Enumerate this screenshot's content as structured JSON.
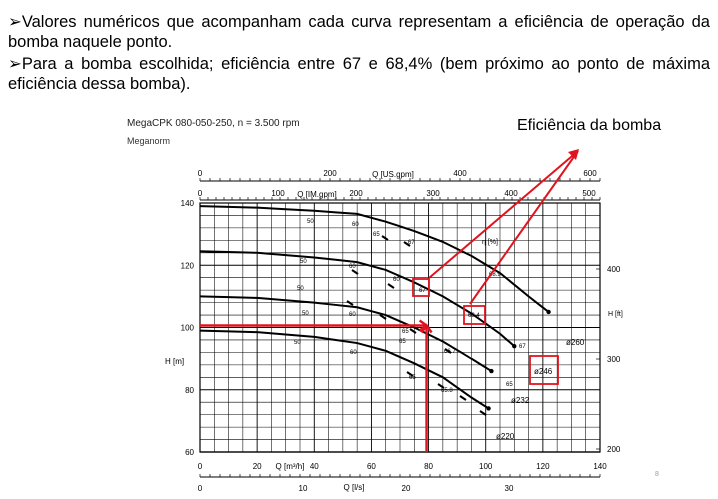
{
  "bullets": [
    "➢Valores numéricos que acompanham cada curva representam a eficiência de operação da bomba naquele ponto.",
    "➢Para a bomba escolhida; eficiência entre 67 e 68,4% (bem próximo ao ponto de máxima eficiência dessa bomba)."
  ],
  "figure": {
    "title": "MegaCPK 080-050-250, n = 3.500 rpm",
    "subtitle": "Meganorm",
    "callout": "Eficiência da bomba",
    "page_number": "8",
    "accent_color": "#e0141e"
  },
  "chart_data": {
    "type": "line",
    "xlabel": "Q [m³/h]",
    "ylabel": "H [m]",
    "xlim": [
      0,
      140
    ],
    "ylim": [
      60,
      140
    ],
    "x_ticks": [
      "0",
      "20",
      "40",
      "60",
      "80",
      "100",
      "120",
      "140"
    ],
    "y_ticks": [
      "60",
      "80",
      "100",
      "120",
      "140"
    ],
    "secondary_axes": {
      "top_us_gpm": {
        "label": "Q [US.gpm]",
        "ticks": [
          "0",
          "200",
          "400",
          "600"
        ]
      },
      "top_im_gpm": {
        "label": "Q [IM.gpm]",
        "ticks": [
          "0",
          "100",
          "200",
          "300",
          "400",
          "500"
        ]
      },
      "bottom_ls": {
        "label": "Q [l/s]",
        "ticks": [
          "0",
          "10",
          "20",
          "30"
        ]
      },
      "right_ft": {
        "label": "H [ft]",
        "ticks": [
          "200",
          "300",
          "400"
        ]
      }
    },
    "efficiency_unit": "η [%]",
    "series": [
      {
        "name": "ø260",
        "x": [
          0,
          20,
          40,
          55,
          65,
          75,
          85,
          95,
          105,
          115,
          122
        ],
        "y": [
          139,
          138.5,
          137.5,
          136.5,
          134,
          131,
          127.5,
          123,
          117.5,
          110,
          105
        ]
      },
      {
        "name": "ø246",
        "x": [
          0,
          20,
          40,
          55,
          65,
          75,
          85,
          95,
          105,
          110
        ],
        "y": [
          124.5,
          124,
          122.5,
          121,
          118.5,
          114.5,
          110,
          104.5,
          98,
          94
        ]
      },
      {
        "name": "ø232",
        "x": [
          0,
          20,
          40,
          55,
          65,
          75,
          85,
          95,
          102
        ],
        "y": [
          110,
          109.5,
          108,
          106.5,
          104,
          100,
          95.5,
          90,
          86
        ]
      },
      {
        "name": "ø220",
        "x": [
          0,
          20,
          40,
          55,
          65,
          75,
          85,
          95,
          101
        ],
        "y": [
          99,
          98.5,
          97,
          95,
          92.5,
          88.5,
          84,
          77.5,
          74
        ]
      }
    ],
    "efficiency_labels": [
      "50",
      "60",
      "65",
      "67",
      "67",
      "68.4",
      "68.9",
      "66.7",
      "65",
      "65.8",
      "65",
      "67",
      "65",
      "60",
      "50"
    ],
    "highlight_values": {
      "flow_m3h": 80,
      "head_m": 100,
      "efficiency_low": "67",
      "efficiency_high": "68.4",
      "impeller": "ø246"
    }
  }
}
